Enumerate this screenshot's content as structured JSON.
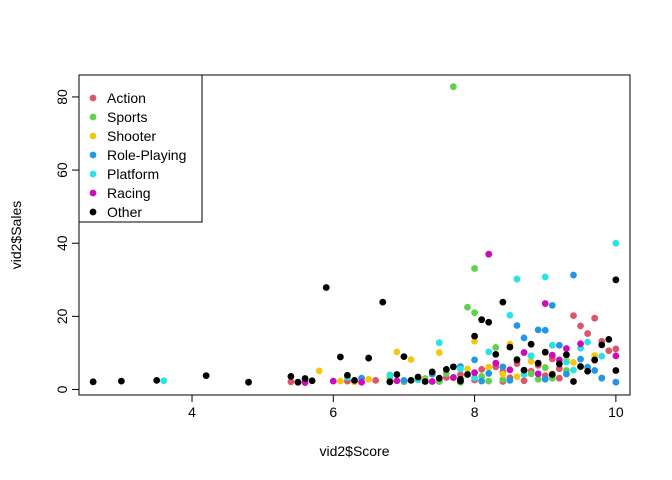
{
  "chart_data": {
    "type": "scatter",
    "xlabel": "vid2$Score",
    "ylabel": "vid2$Sales",
    "xlim": [
      2.4,
      10.2
    ],
    "ylim": [
      -1.5,
      86
    ],
    "xticks": [
      4,
      6,
      8,
      10
    ],
    "yticks": [
      0,
      20,
      40,
      60,
      80
    ],
    "grid": false,
    "legend_position": "top-left",
    "colors": {
      "Action": "#df536b",
      "Sports": "#61d04f",
      "Shooter": "#f5c710",
      "Role-Playing": "#2297e6",
      "Platform": "#28e2e5",
      "Racing": "#cd0bbc",
      "Other": "#000000"
    },
    "legend": [
      "Action",
      "Sports",
      "Shooter",
      "Role-Playing",
      "Platform",
      "Racing",
      "Other"
    ],
    "series": [
      {
        "name": "Action",
        "points": [
          [
            5.4,
            2.1
          ],
          [
            6.2,
            2.3
          ],
          [
            6.6,
            2.5
          ],
          [
            7.0,
            2.4
          ],
          [
            7.2,
            3.0
          ],
          [
            7.5,
            2.2
          ],
          [
            7.8,
            4.1
          ],
          [
            8.0,
            2.6
          ],
          [
            8.1,
            5.5
          ],
          [
            8.3,
            6.2
          ],
          [
            8.4,
            4.8
          ],
          [
            8.5,
            3.2
          ],
          [
            8.6,
            7.1
          ],
          [
            8.7,
            2.4
          ],
          [
            8.8,
            5.0
          ],
          [
            8.9,
            6.6
          ],
          [
            9.0,
            3.8
          ],
          [
            9.1,
            8.4
          ],
          [
            9.2,
            5.7
          ],
          [
            9.3,
            9.5
          ],
          [
            9.4,
            20.2
          ],
          [
            9.5,
            17.4
          ],
          [
            9.6,
            15.3
          ],
          [
            9.7,
            19.5
          ],
          [
            9.8,
            13.2
          ],
          [
            9.9,
            10.6
          ],
          [
            10.0,
            11.1
          ],
          [
            9.2,
            3.1
          ],
          [
            8.4,
            2.2
          ],
          [
            7.6,
            3.3
          ]
        ]
      },
      {
        "name": "Sports",
        "points": [
          [
            7.7,
            82.8
          ],
          [
            7.9,
            22.5
          ],
          [
            8.0,
            21.0
          ],
          [
            8.0,
            33.1
          ],
          [
            8.3,
            11.5
          ],
          [
            7.3,
            3.0
          ],
          [
            7.5,
            2.3
          ],
          [
            7.6,
            4.4
          ],
          [
            7.8,
            2.0
          ],
          [
            8.1,
            3.6
          ],
          [
            8.2,
            2.3
          ],
          [
            8.4,
            2.7
          ],
          [
            8.6,
            8.3
          ],
          [
            8.8,
            4.3
          ],
          [
            8.9,
            2.8
          ],
          [
            9.0,
            6.0
          ],
          [
            9.1,
            3.1
          ],
          [
            9.3,
            5.2
          ],
          [
            6.8,
            3.3
          ],
          [
            7.0,
            2.1
          ]
        ]
      },
      {
        "name": "Shooter",
        "points": [
          [
            5.8,
            5.1
          ],
          [
            6.1,
            2.3
          ],
          [
            6.5,
            2.8
          ],
          [
            6.9,
            10.3
          ],
          [
            7.1,
            8.2
          ],
          [
            7.5,
            10.1
          ],
          [
            7.7,
            3.2
          ],
          [
            7.9,
            5.6
          ],
          [
            8.0,
            13.2
          ],
          [
            8.2,
            6.1
          ],
          [
            8.4,
            4.2
          ],
          [
            8.5,
            12.4
          ],
          [
            8.6,
            3.5
          ],
          [
            8.8,
            7.7
          ],
          [
            9.0,
            10.2
          ],
          [
            9.1,
            4.3
          ],
          [
            9.3,
            8.1
          ],
          [
            9.4,
            7.4
          ],
          [
            9.5,
            6.2
          ],
          [
            9.7,
            9.3
          ],
          [
            9.8,
            3.2
          ],
          [
            10.0,
            5.1
          ],
          [
            7.3,
            2.5
          ],
          [
            6.3,
            2.1
          ]
        ]
      },
      {
        "name": "Role-Playing",
        "points": [
          [
            6.4,
            3.1
          ],
          [
            7.0,
            2.5
          ],
          [
            7.4,
            4.2
          ],
          [
            7.8,
            6.3
          ],
          [
            8.0,
            8.1
          ],
          [
            8.2,
            4.4
          ],
          [
            8.4,
            6.2
          ],
          [
            8.6,
            17.5
          ],
          [
            8.7,
            14.1
          ],
          [
            8.8,
            9.2
          ],
          [
            8.9,
            16.3
          ],
          [
            9.0,
            16.2
          ],
          [
            9.1,
            23.0
          ],
          [
            9.2,
            12.1
          ],
          [
            9.3,
            4.2
          ],
          [
            9.4,
            31.3
          ],
          [
            9.5,
            8.3
          ],
          [
            9.6,
            6.1
          ],
          [
            9.7,
            5.2
          ],
          [
            9.8,
            3.1
          ],
          [
            10.0,
            2.0
          ],
          [
            8.1,
            2.3
          ],
          [
            8.5,
            2.5
          ],
          [
            9.0,
            2.8
          ]
        ]
      },
      {
        "name": "Platform",
        "points": [
          [
            3.6,
            2.4
          ],
          [
            6.2,
            3.3
          ],
          [
            6.8,
            4.0
          ],
          [
            7.5,
            12.8
          ],
          [
            7.8,
            5.6
          ],
          [
            8.0,
            3.2
          ],
          [
            8.2,
            10.3
          ],
          [
            8.5,
            20.3
          ],
          [
            8.6,
            30.2
          ],
          [
            8.8,
            9.2
          ],
          [
            9.0,
            30.8
          ],
          [
            9.1,
            12.1
          ],
          [
            9.3,
            7.5
          ],
          [
            9.5,
            11.3
          ],
          [
            9.6,
            13.0
          ],
          [
            9.8,
            9.1
          ],
          [
            10.0,
            40.0
          ],
          [
            7.2,
            2.6
          ],
          [
            8.7,
            4.1
          ],
          [
            9.4,
            5.3
          ]
        ]
      },
      {
        "name": "Racing",
        "points": [
          [
            5.6,
            1.9
          ],
          [
            6.0,
            2.3
          ],
          [
            6.4,
            2.0
          ],
          [
            6.9,
            2.4
          ],
          [
            7.4,
            2.2
          ],
          [
            7.7,
            3.3
          ],
          [
            8.0,
            4.6
          ],
          [
            8.2,
            37.0
          ],
          [
            8.3,
            7.2
          ],
          [
            8.5,
            5.4
          ],
          [
            8.7,
            10.1
          ],
          [
            8.9,
            4.3
          ],
          [
            9.0,
            23.5
          ],
          [
            9.1,
            9.4
          ],
          [
            9.2,
            8.1
          ],
          [
            9.3,
            11.2
          ],
          [
            9.5,
            12.5
          ],
          [
            9.7,
            8.0
          ],
          [
            10.0,
            9.2
          ]
        ]
      },
      {
        "name": "Other",
        "points": [
          [
            2.6,
            2.1
          ],
          [
            3.0,
            2.3
          ],
          [
            3.5,
            2.5
          ],
          [
            4.2,
            3.8
          ],
          [
            4.8,
            2.0
          ],
          [
            5.4,
            3.6
          ],
          [
            5.5,
            2.0
          ],
          [
            5.6,
            3.0
          ],
          [
            5.7,
            2.4
          ],
          [
            5.9,
            27.9
          ],
          [
            6.1,
            8.9
          ],
          [
            6.3,
            2.5
          ],
          [
            6.5,
            8.6
          ],
          [
            6.7,
            23.9
          ],
          [
            6.8,
            2.1
          ],
          [
            6.9,
            4.1
          ],
          [
            7.0,
            9.0
          ],
          [
            7.1,
            2.5
          ],
          [
            7.2,
            3.4
          ],
          [
            7.3,
            2.2
          ],
          [
            7.4,
            4.8
          ],
          [
            7.5,
            3.1
          ],
          [
            7.6,
            5.5
          ],
          [
            7.7,
            6.2
          ],
          [
            7.8,
            2.3
          ],
          [
            7.9,
            4.1
          ],
          [
            8.0,
            14.6
          ],
          [
            8.1,
            19.1
          ],
          [
            8.2,
            18.4
          ],
          [
            8.3,
            9.6
          ],
          [
            8.4,
            23.9
          ],
          [
            8.5,
            11.6
          ],
          [
            8.6,
            8.1
          ],
          [
            8.7,
            5.3
          ],
          [
            8.8,
            12.4
          ],
          [
            8.9,
            7.2
          ],
          [
            9.0,
            10.2
          ],
          [
            9.1,
            4.1
          ],
          [
            9.2,
            7.0
          ],
          [
            9.3,
            9.5
          ],
          [
            9.4,
            2.2
          ],
          [
            9.5,
            6.3
          ],
          [
            9.6,
            5.0
          ],
          [
            9.7,
            8.1
          ],
          [
            9.8,
            12.2
          ],
          [
            9.9,
            13.7
          ],
          [
            10.0,
            30.0
          ],
          [
            10.0,
            5.2
          ],
          [
            6.2,
            3.9
          ],
          [
            7.8,
            2.8
          ]
        ]
      }
    ]
  }
}
